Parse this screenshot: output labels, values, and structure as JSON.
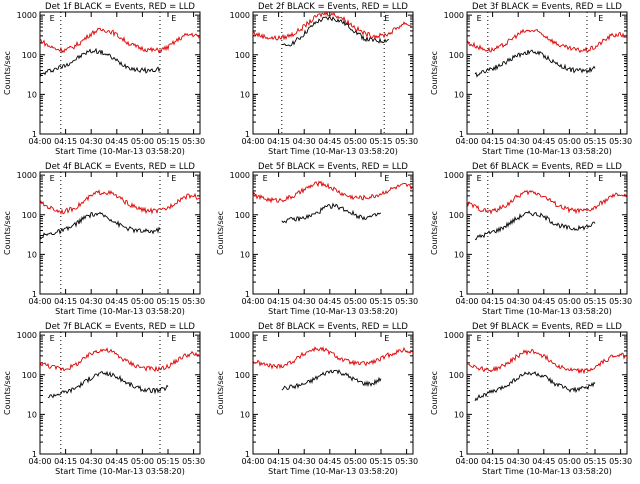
{
  "chart_data": [
    {
      "type": "line",
      "title": "Det 1f BLACK = Events, RED = LLD",
      "marker": "E",
      "xlabel": "Start Time (10-Mar-13 03:58:20)",
      "ylabel": "Counts/sec",
      "xticks": [
        "04:00",
        "04:15",
        "04:30",
        "04:45",
        "05:00",
        "05:15",
        "05:30"
      ],
      "yticks": [
        "1",
        "10",
        "100",
        "1000"
      ],
      "yscale": "log",
      "ylim": [
        1,
        1200
      ],
      "xlim": [
        0,
        100
      ],
      "dotted_lines_x": [
        13,
        75
      ],
      "series": [
        {
          "color": "#000000",
          "x": [
            0,
            5,
            10,
            15,
            20,
            25,
            30,
            35,
            40,
            45,
            50,
            55,
            60,
            65,
            70,
            75
          ],
          "values": [
            30,
            38,
            45,
            52,
            68,
            90,
            120,
            125,
            110,
            85,
            62,
            50,
            42,
            40,
            40,
            45
          ]
        },
        {
          "color": "#dd0000",
          "x": [
            0,
            5,
            10,
            15,
            20,
            25,
            30,
            35,
            40,
            45,
            50,
            55,
            60,
            65,
            70,
            75,
            80,
            85,
            90,
            95,
            100
          ],
          "values": [
            240,
            170,
            140,
            130,
            150,
            200,
            300,
            400,
            430,
            380,
            280,
            200,
            160,
            140,
            130,
            130,
            155,
            220,
            300,
            330,
            280
          ]
        }
      ]
    },
    {
      "type": "line",
      "title": "Det 2f BLACK = Events, RED = LLD",
      "marker": "E",
      "xlabel": "Start Time (10-Mar-13 03:58:20)",
      "ylabel": "",
      "xticks": [
        "04:00",
        "04:15",
        "04:30",
        "04:45",
        "05:00",
        "05:15",
        "05:30"
      ],
      "yticks": [
        "1",
        "10",
        "100",
        "1000"
      ],
      "yscale": "log",
      "ylim": [
        1,
        1200
      ],
      "xlim": [
        0,
        100
      ],
      "dotted_lines_x": [
        18,
        82
      ],
      "series": [
        {
          "color": "#000000",
          "x": [
            18,
            25,
            30,
            35,
            40,
            45,
            50,
            55,
            60,
            65,
            70,
            75,
            80,
            85
          ],
          "values": [
            160,
            200,
            280,
            450,
            680,
            820,
            820,
            700,
            520,
            360,
            250,
            230,
            220,
            240
          ]
        },
        {
          "color": "#dd0000",
          "x": [
            0,
            5,
            10,
            15,
            20,
            25,
            30,
            35,
            40,
            45,
            50,
            55,
            60,
            65,
            70,
            75,
            80,
            85,
            90,
            95,
            100
          ],
          "values": [
            360,
            300,
            270,
            260,
            280,
            330,
            450,
            650,
            950,
            1100,
            1050,
            880,
            640,
            450,
            340,
            300,
            300,
            340,
            480,
            640,
            500
          ]
        }
      ]
    },
    {
      "type": "line",
      "title": "Det 3f BLACK = Events, RED = LLD",
      "marker": "E",
      "xlabel": "Start Time (10-Mar-13 03:58:20)",
      "ylabel": "Counts/sec",
      "xticks": [
        "04:00",
        "04:15",
        "04:30",
        "04:45",
        "05:00",
        "05:15",
        "05:30"
      ],
      "yticks": [
        "1",
        "10",
        "100",
        "1000"
      ],
      "yscale": "log",
      "ylim": [
        1,
        1200
      ],
      "xlim": [
        0,
        100
      ],
      "dotted_lines_x": [
        13,
        75
      ],
      "series": [
        {
          "color": "#000000",
          "x": [
            5,
            10,
            15,
            20,
            25,
            30,
            35,
            40,
            45,
            50,
            55,
            60,
            65,
            70,
            75,
            80
          ],
          "values": [
            30,
            38,
            45,
            52,
            68,
            90,
            110,
            120,
            110,
            85,
            62,
            50,
            42,
            40,
            40,
            45
          ]
        },
        {
          "color": "#dd0000",
          "x": [
            0,
            5,
            10,
            15,
            20,
            25,
            30,
            35,
            40,
            45,
            50,
            55,
            60,
            65,
            70,
            75,
            80,
            85,
            90,
            95,
            100
          ],
          "values": [
            200,
            170,
            140,
            130,
            150,
            200,
            290,
            380,
            410,
            370,
            280,
            200,
            160,
            140,
            130,
            130,
            155,
            220,
            300,
            330,
            280
          ]
        }
      ]
    },
    {
      "type": "line",
      "title": "Det 4f BLACK = Events, RED = LLD",
      "marker": "E",
      "xlabel": "Start Time (10-Mar-13 03:58:20)",
      "ylabel": "Counts/sec",
      "xticks": [
        "04:00",
        "04:15",
        "04:30",
        "04:45",
        "05:00",
        "05:15",
        "05:30"
      ],
      "yticks": [
        "1",
        "10",
        "100",
        "1000"
      ],
      "yscale": "log",
      "ylim": [
        1,
        1200
      ],
      "xlim": [
        0,
        100
      ],
      "dotted_lines_x": [
        13,
        75
      ],
      "series": [
        {
          "color": "#000000",
          "x": [
            0,
            5,
            10,
            15,
            20,
            25,
            30,
            35,
            40,
            45,
            50,
            55,
            60,
            65,
            70,
            75
          ],
          "values": [
            28,
            32,
            36,
            40,
            50,
            70,
            95,
            105,
            95,
            75,
            55,
            45,
            40,
            38,
            38,
            42
          ]
        },
        {
          "color": "#dd0000",
          "x": [
            0,
            5,
            10,
            15,
            20,
            25,
            30,
            35,
            40,
            45,
            50,
            55,
            60,
            65,
            70,
            75,
            80,
            85,
            90,
            95,
            100
          ],
          "values": [
            200,
            160,
            130,
            120,
            140,
            180,
            260,
            350,
            380,
            340,
            260,
            190,
            150,
            130,
            125,
            125,
            150,
            210,
            280,
            310,
            260
          ]
        }
      ]
    },
    {
      "type": "line",
      "title": "Det 5f BLACK = Events, RED = LLD",
      "marker": "E",
      "xlabel": "Start Time (10-Mar-13 03:58:20)",
      "ylabel": "Counts/sec",
      "xticks": [
        "04:00",
        "04:15",
        "04:30",
        "04:45",
        "05:00",
        "05:15",
        "05:30"
      ],
      "yticks": [
        "1",
        "10",
        "100",
        "1000"
      ],
      "yscale": "log",
      "ylim": [
        1,
        1200
      ],
      "xlim": [
        0,
        100
      ],
      "dotted_lines_x": [],
      "series": [
        {
          "color": "#000000",
          "x": [
            18,
            25,
            30,
            35,
            40,
            45,
            50,
            55,
            60,
            65,
            70,
            75,
            80
          ],
          "values": [
            70,
            75,
            80,
            90,
            110,
            150,
            170,
            150,
            120,
            95,
            85,
            90,
            110
          ]
        },
        {
          "color": "#dd0000",
          "x": [
            0,
            5,
            10,
            15,
            20,
            25,
            30,
            35,
            40,
            45,
            50,
            55,
            60,
            65,
            70,
            75,
            80,
            85,
            90,
            95,
            100
          ],
          "values": [
            320,
            270,
            240,
            230,
            250,
            290,
            380,
            500,
            620,
            580,
            460,
            350,
            290,
            270,
            270,
            290,
            340,
            420,
            500,
            560,
            480
          ]
        }
      ]
    },
    {
      "type": "line",
      "title": "Det 6f BLACK = Events, RED = LLD",
      "marker": "E",
      "xlabel": "Start Time (10-Mar-13 03:58:20)",
      "ylabel": "Counts/sec",
      "xticks": [
        "04:00",
        "04:15",
        "04:30",
        "04:45",
        "05:00",
        "05:15",
        "05:30"
      ],
      "yticks": [
        "1",
        "10",
        "100",
        "1000"
      ],
      "yscale": "log",
      "ylim": [
        1,
        1200
      ],
      "xlim": [
        0,
        100
      ],
      "dotted_lines_x": [
        13,
        75
      ],
      "series": [
        {
          "color": "#000000",
          "x": [
            5,
            10,
            15,
            20,
            25,
            30,
            35,
            40,
            45,
            50,
            55,
            60,
            65,
            70,
            75,
            80
          ],
          "values": [
            25,
            30,
            36,
            42,
            55,
            75,
            100,
            110,
            100,
            80,
            60,
            50,
            45,
            45,
            50,
            60
          ]
        },
        {
          "color": "#dd0000",
          "x": [
            0,
            5,
            10,
            15,
            20,
            25,
            30,
            35,
            40,
            45,
            50,
            55,
            60,
            65,
            70,
            75,
            80,
            85,
            90,
            95,
            100
          ],
          "values": [
            200,
            160,
            130,
            120,
            140,
            180,
            260,
            350,
            380,
            340,
            260,
            190,
            150,
            130,
            125,
            125,
            150,
            210,
            280,
            330,
            280
          ]
        }
      ]
    },
    {
      "type": "line",
      "title": "Det 7f BLACK = Events, RED = LLD",
      "marker": "E",
      "xlabel": "Start Time (10-Mar-13 03:58:20)",
      "ylabel": "Counts/sec",
      "xticks": [
        "04:00",
        "04:15",
        "04:30",
        "04:45",
        "05:00",
        "05:15",
        "05:30"
      ],
      "yticks": [
        "1",
        "10",
        "100",
        "1000"
      ],
      "yscale": "log",
      "ylim": [
        1,
        1200
      ],
      "xlim": [
        0,
        100
      ],
      "dotted_lines_x": [
        13,
        75
      ],
      "series": [
        {
          "color": "#000000",
          "x": [
            5,
            10,
            15,
            20,
            25,
            30,
            35,
            40,
            45,
            50,
            55,
            60,
            65,
            70,
            75,
            80
          ],
          "values": [
            28,
            32,
            36,
            42,
            55,
            75,
            100,
            110,
            100,
            80,
            60,
            48,
            42,
            40,
            40,
            50
          ]
        },
        {
          "color": "#dd0000",
          "x": [
            0,
            5,
            10,
            15,
            20,
            25,
            30,
            35,
            40,
            45,
            50,
            55,
            60,
            65,
            70,
            75,
            80,
            85,
            90,
            95,
            100
          ],
          "values": [
            200,
            170,
            150,
            140,
            160,
            210,
            300,
            400,
            430,
            380,
            280,
            210,
            170,
            150,
            140,
            140,
            160,
            220,
            300,
            340,
            290
          ]
        }
      ]
    },
    {
      "type": "line",
      "title": "Det 8f BLACK = Events, RED = LLD",
      "marker": "E",
      "xlabel": "Start Time (10-Mar-13 03:58:20)",
      "ylabel": "Counts/sec",
      "xticks": [
        "04:00",
        "04:15",
        "04:30",
        "04:45",
        "05:00",
        "05:15",
        "05:30"
      ],
      "yticks": [
        "1",
        "10",
        "100",
        "1000"
      ],
      "yscale": "log",
      "ylim": [
        1,
        1200
      ],
      "xlim": [
        0,
        100
      ],
      "dotted_lines_x": [],
      "series": [
        {
          "color": "#000000",
          "x": [
            18,
            25,
            30,
            35,
            40,
            45,
            50,
            55,
            60,
            65,
            70,
            75,
            80
          ],
          "values": [
            45,
            50,
            55,
            65,
            85,
            110,
            130,
            115,
            90,
            70,
            60,
            60,
            80
          ]
        },
        {
          "color": "#dd0000",
          "x": [
            0,
            5,
            10,
            15,
            20,
            25,
            30,
            35,
            40,
            45,
            50,
            55,
            60,
            65,
            70,
            75,
            80,
            85,
            90,
            95,
            100
          ],
          "values": [
            220,
            190,
            170,
            160,
            180,
            220,
            300,
            400,
            460,
            420,
            330,
            250,
            210,
            190,
            190,
            210,
            250,
            320,
            380,
            420,
            360
          ]
        }
      ]
    },
    {
      "type": "line",
      "title": "Det 9f BLACK = Events, RED = LLD",
      "marker": "E",
      "xlabel": "Start Time (10-Mar-13 03:58:20)",
      "ylabel": "Counts/sec",
      "xticks": [
        "04:00",
        "04:15",
        "04:30",
        "04:45",
        "05:00",
        "05:15",
        "05:30"
      ],
      "yticks": [
        "1",
        "10",
        "100",
        "1000"
      ],
      "yscale": "log",
      "ylim": [
        1,
        1200
      ],
      "xlim": [
        0,
        100
      ],
      "dotted_lines_x": [
        13,
        75
      ],
      "series": [
        {
          "color": "#000000",
          "x": [
            5,
            10,
            15,
            20,
            25,
            30,
            35,
            40,
            45,
            50,
            55,
            60,
            65,
            70,
            75,
            80
          ],
          "values": [
            25,
            30,
            36,
            42,
            55,
            75,
            100,
            110,
            100,
            80,
            60,
            48,
            42,
            42,
            48,
            60
          ]
        },
        {
          "color": "#dd0000",
          "x": [
            0,
            5,
            10,
            15,
            20,
            25,
            30,
            35,
            40,
            45,
            50,
            55,
            60,
            65,
            70,
            75,
            80,
            85,
            90,
            95,
            100
          ],
          "values": [
            200,
            160,
            140,
            130,
            150,
            190,
            270,
            360,
            390,
            350,
            260,
            190,
            150,
            130,
            125,
            125,
            150,
            210,
            280,
            330,
            280
          ]
        }
      ]
    }
  ]
}
